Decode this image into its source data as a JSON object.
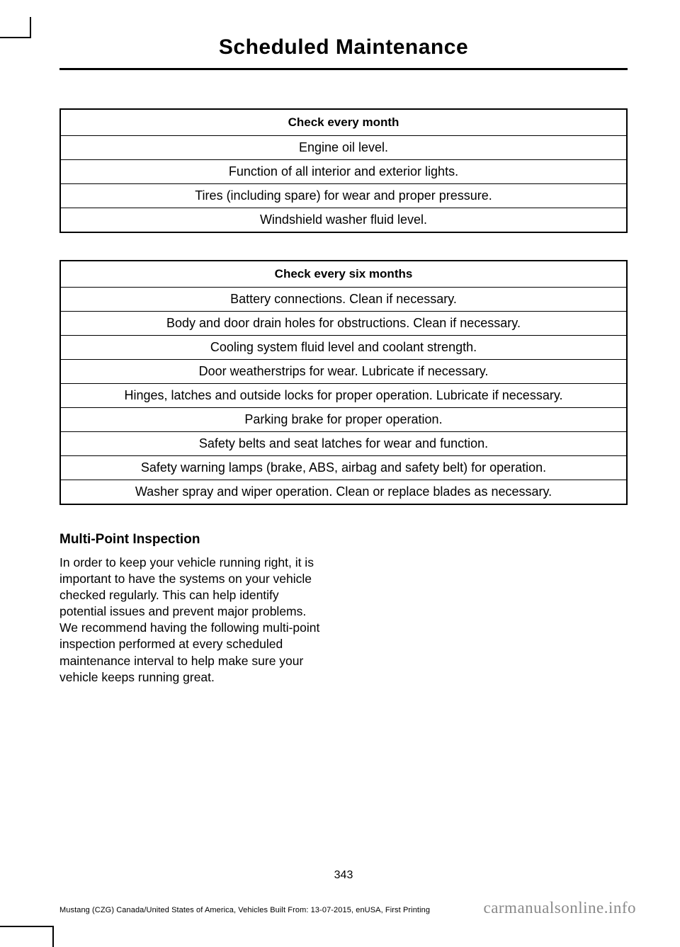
{
  "header": {
    "title": "Scheduled Maintenance"
  },
  "table1": {
    "heading": "Check every month",
    "rows": [
      "Engine oil level.",
      "Function of all interior and exterior lights.",
      "Tires (including spare) for wear and proper pressure.",
      "Windshield washer fluid level."
    ]
  },
  "table2": {
    "heading": "Check every six months",
    "rows": [
      "Battery connections. Clean if necessary.",
      "Body and door drain holes for obstructions. Clean if necessary.",
      "Cooling system fluid level and coolant strength.",
      "Door weatherstrips for wear. Lubricate if necessary.",
      "Hinges, latches and outside locks for proper operation. Lubricate if necessary.",
      "Parking brake for proper operation.",
      "Safety belts and seat latches for wear and function.",
      "Safety warning lamps (brake, ABS, airbag and safety belt) for operation.",
      "Washer spray and wiper operation. Clean or replace blades as necessary."
    ]
  },
  "section": {
    "heading": "Multi-Point Inspection",
    "body": "In order to keep your vehicle running right, it is important to have the systems on your vehicle checked regularly. This can help identify potential issues and prevent major problems. We recommend having the following multi-point inspection performed at every scheduled maintenance interval to help make sure your vehicle keeps running great."
  },
  "page_number": "343",
  "footer_left": "Mustang (CZG) Canada/United States of America, Vehicles Built From: 13-07-2015, enUSA, First Printing",
  "watermark": "carmanualsonline.info"
}
